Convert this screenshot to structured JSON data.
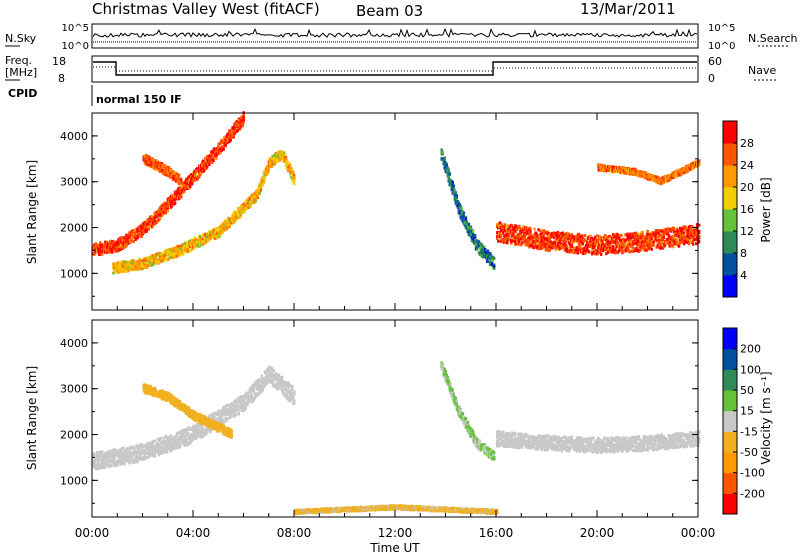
{
  "header": {
    "title": "Christmas Valley West (fitACF)",
    "beam": "Beam 03",
    "date": "13/Mar/2011"
  },
  "nsky_panel": {
    "left_label": "N.Sky",
    "right_label": "N.Search",
    "left_ticks": [
      "10^5",
      "10^0"
    ],
    "right_ticks": [
      "10^5",
      "10^0"
    ]
  },
  "freq_panel": {
    "left_label_line1": "Freq.",
    "left_label_line2": "[MHz]",
    "right_label": "Nave",
    "left_ticks": [
      "18",
      "8"
    ],
    "right_ticks": [
      "60",
      "0"
    ]
  },
  "cpid": {
    "label": "CPID",
    "value": "normal 150 IF"
  },
  "time_axis": {
    "label": "Time UT",
    "ticks": [
      "00:00",
      "04:00",
      "08:00",
      "12:00",
      "16:00",
      "20:00",
      "00:00"
    ]
  },
  "colors": {
    "power_scale": [
      "#0000ff",
      "#0050a0",
      "#2e8b57",
      "#66c23a",
      "#f0d000",
      "#ff9900",
      "#ff5500",
      "#ff0000"
    ],
    "velocity_scale": [
      "#ff0000",
      "#ff5500",
      "#ff9900",
      "#f0b020",
      "#c8c8c8",
      "#66c23a",
      "#2e8b57",
      "#0050a0",
      "#0000ff"
    ],
    "ground_scatter": "#c8c8c8"
  },
  "chart_data": [
    {
      "type": "heatmap",
      "title": "",
      "xlabel": "",
      "ylabel": "Slant Range [km]",
      "xlim": [
        0,
        24
      ],
      "ylim": [
        200,
        4500
      ],
      "y_ticks": [
        "1000",
        "2000",
        "3000",
        "4000"
      ],
      "colorbar": {
        "label": "Power [dB]",
        "tick_labels": [
          "4",
          "8",
          "12",
          "16",
          "20",
          "24",
          "28"
        ],
        "range": [
          0,
          32
        ]
      },
      "features": [
        {
          "name": "diagonal_band_1",
          "t": [
            0.0,
            1.0,
            2.0,
            3.0,
            4.0,
            5.0,
            6.0
          ],
          "range": [
            1500,
            1600,
            1950,
            2500,
            3100,
            3700,
            4400
          ],
          "power": 28
        },
        {
          "name": "diagonal_band_2",
          "t": [
            0.8,
            2.0,
            3.5,
            5.0,
            6.5,
            7.0,
            7.5,
            8.0
          ],
          "range": [
            1100,
            1200,
            1500,
            1900,
            2700,
            3400,
            3600,
            3000
          ],
          "power": 20
        },
        {
          "name": "cluster_0300",
          "t": [
            2.0,
            3.0,
            3.5
          ],
          "range": [
            3500,
            3200,
            3000
          ],
          "power": 26
        },
        {
          "name": "band_14_16",
          "t": [
            13.8,
            14.5,
            15.2,
            15.9
          ],
          "range": [
            3600,
            2400,
            1600,
            1200
          ],
          "power": 8
        },
        {
          "name": "band_16_24",
          "t": [
            16.0,
            18.0,
            20.0,
            22.0,
            24.0
          ],
          "range": [
            1900,
            1700,
            1600,
            1700,
            1850
          ],
          "power": 28
        },
        {
          "name": "upper_band_20_24",
          "t": [
            20.0,
            21.5,
            22.5,
            24.0
          ],
          "range": [
            3300,
            3200,
            3000,
            3400
          ],
          "power": 24
        }
      ]
    },
    {
      "type": "heatmap",
      "title": "",
      "xlabel": "Time UT",
      "ylabel": "Slant Range [km]",
      "xlim": [
        0,
        24
      ],
      "ylim": [
        200,
        4500
      ],
      "y_ticks": [
        "1000",
        "2000",
        "3000",
        "4000"
      ],
      "colorbar": {
        "label": "Velocity [m s⁻¹]",
        "tick_labels": [
          "200",
          "100",
          "50",
          "15",
          "-15",
          "-50",
          "-100",
          "-200"
        ],
        "range": [
          -250,
          250
        ]
      },
      "features": [
        {
          "name": "ground_scatter_early",
          "t": [
            0.0,
            2.0,
            4.0,
            6.0,
            7.0,
            8.0
          ],
          "range": [
            1400,
            1600,
            2000,
            2700,
            3300,
            2800
          ],
          "velocity": 0
        },
        {
          "name": "orange_patches",
          "t": [
            2.0,
            3.0,
            4.0,
            5.5
          ],
          "range": [
            3000,
            2800,
            2400,
            2000
          ],
          "velocity": -50
        },
        {
          "name": "green_band_14_16",
          "t": [
            13.8,
            14.5,
            15.2,
            15.9
          ],
          "range": [
            3500,
            2500,
            1800,
            1500
          ],
          "velocity": 30
        },
        {
          "name": "ground_scatter_late",
          "t": [
            16.0,
            18.0,
            20.0,
            22.0,
            24.0
          ],
          "range": [
            1900,
            1800,
            1750,
            1800,
            1900
          ],
          "velocity": 0
        },
        {
          "name": "near_range_orange",
          "t": [
            8.0,
            10.0,
            12.0,
            14.0,
            16.0
          ],
          "range": [
            300,
            350,
            400,
            350,
            300
          ],
          "velocity": -40
        }
      ]
    }
  ]
}
